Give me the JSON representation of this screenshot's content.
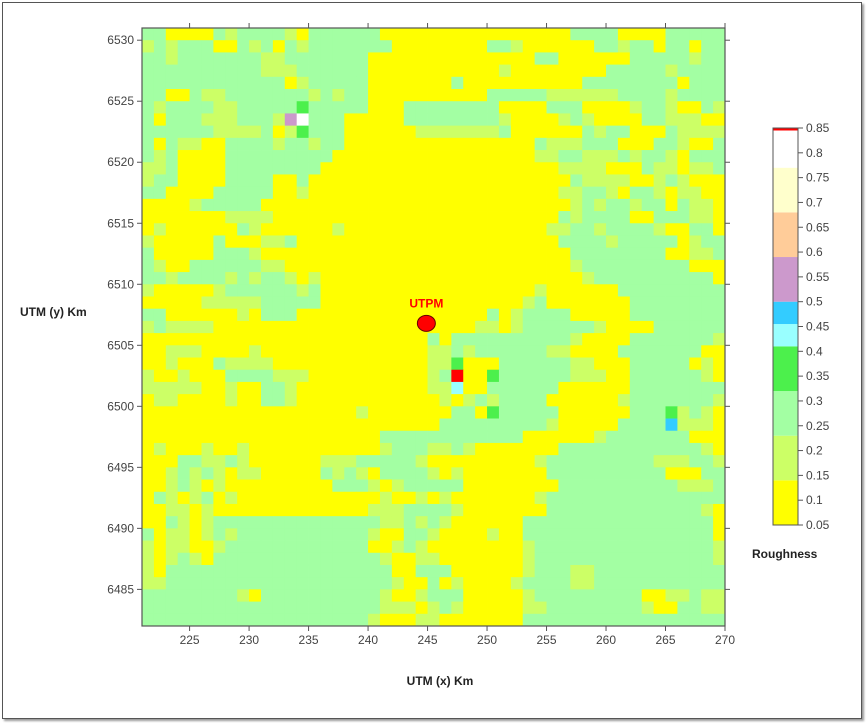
{
  "chart_data": {
    "type": "heatmap",
    "xlabel": "UTM (x) Km",
    "ylabel": "UTM (y) Km",
    "xlim": [
      221,
      270
    ],
    "ylim": [
      6482,
      6531
    ],
    "x_ticks": [
      225,
      230,
      235,
      240,
      245,
      250,
      255,
      260,
      265,
      270
    ],
    "y_ticks": [
      6485,
      6490,
      6495,
      6500,
      6505,
      6510,
      6515,
      6520,
      6525,
      6530
    ],
    "cell_size_km": 1,
    "grid_origin_top_left": [
      221,
      6531
    ],
    "legend": {
      "title": "Roughness",
      "position": "right",
      "tick_labels": [
        "0.05",
        "0.1",
        "0.15",
        "0.2",
        "0.25",
        "0.3",
        "0.35",
        "0.4",
        "0.45",
        "0.5",
        "0.55",
        "0.6",
        "0.65",
        "0.7",
        "0.75",
        "0.8",
        "0.85"
      ],
      "range": [
        0.05,
        0.85
      ]
    },
    "classes": {
      "Y": {
        "value": 0.1,
        "from": 0.05,
        "to": 0.14,
        "color": "#ffff00"
      },
      "L": {
        "value": 0.2,
        "from": 0.14,
        "to": 0.23,
        "color": "#ccff66"
      },
      "G": {
        "value": 0.28,
        "from": 0.23,
        "to": 0.32,
        "color": "#a3ffa3"
      },
      "D": {
        "value": 0.37,
        "from": 0.32,
        "to": 0.41,
        "color": "#4cf04c"
      },
      "C": {
        "value": 0.43,
        "from": 0.41,
        "to": 0.455,
        "color": "#99ffff"
      },
      "B": {
        "value": 0.48,
        "from": 0.455,
        "to": 0.5,
        "color": "#33ccff"
      },
      "P": {
        "value": 0.55,
        "from": 0.5,
        "to": 0.59,
        "color": "#cc99cc"
      },
      "O": {
        "value": 0.63,
        "from": 0.59,
        "to": 0.68,
        "color": "#ffcc99"
      },
      "K": {
        "value": 0.72,
        "from": 0.68,
        "to": 0.77,
        "color": "#ffffcc"
      },
      "W": {
        "value": 0.81,
        "from": 0.77,
        "to": 0.845,
        "color": "#ffffff"
      },
      "R": {
        "value": 0.85,
        "from": 0.845,
        "to": 0.85,
        "color": "#ff0000"
      }
    },
    "grid_rows": [
      "GGYYYYGLGGGGLYGGGGGGYYYYYYYYYYYYYYYYGGGGYYYYGGGGG",
      "LGLGGGYYGLGYGLGGGGGGGYYYYYYYYGGLYYYYYYGGLGGYGGYGG",
      "GGLGGGGGGGLLGGGGGGGYYYYYYYYYYYYYYGGYYYYYYGGGGGLGG",
      "GGGGGGGGGGLLLGGGGGGYYYYYYYYYYYLYYYYYYYYGGGGGLGGGG",
      "GGGGGGGGGGGGYLGGGGGYYYYYYYGYYYYYYYYYYGGGGGGGGYGGG",
      "GGYYGLLGGGGGGGLGLGGYYYYYYYYYYGGGGGLLLLLLGGGGLGGGG",
      "GLGGGGLLGGGGGDGGGGGYYYGGGGGGGGYYYYGGGYYYYLGGLYYGL",
      "GYGGGLLLGGGLPWGGGYYYYYGGGGGGGGLYYYYLGLYYYYGGLLLYY",
      "GGGGGGLLLLGYLDGGGYYYYYYLLLLLLLGYYYYYYGLGGYYYGLLLL",
      "GYGLLYYGGGGLGGLGGYYYYYYYYYYYYYYYYGLLLGGGYYYGGLYYG",
      "GLGYYYYGGGGGGGGGYYYYYYYYYYYYYYYYYLLGGLLLGLGGLYGGG",
      "LLGYYYYGGGGGGGGYYYYYYYYYYYYYYYYYYYYLLLLYYYGLLYLLG",
      "LGGYYYYGGGGYYGYYYYYYYYYYYYYYYYYYYYYYGLLLLYYLGLYYY",
      "GGYYYYGGGGGYYLYYYYYYYYYYYYYYYYYYYYYLLGGLYGGLYLLYY",
      "YYYYLGGGGGYYYYYYYYYYYYYYYYYYYYYYYYYYLGLGGLGGYGLLY",
      "YYYYYYYLLLLYYYYYYYYYYYYYYYYYYYYYYYYGLGGGGYYGGGLLY",
      "YLYYYYYYGLYYYYYYLYYYYYYYYYYYYYYYYYLLGGLGGGGLYYGGY",
      "LYYYYYGYYYLLGYYYYYYYYYYYYYYYYYYYYYYGGGGLGGGGGYLGG",
      "GYYYYYGGGLYYYYYYYYYYYYYYYYYYYYYYYYYYGGGGGGGGYYLLG",
      "GLYYGGGGGGLLYYYYYYYYYYYYYYYYYYYYYYYYLGGGGGGGGGYYY",
      "GGLGGGGLGLGGLYLYYYYYYYYYYYYYYYYYYYYYYLGGGGGGGGGGY",
      "LYYYYYLGGGGGGLGYYYYYYYYYYYYYYYYYYLYYYYYYGGGGGGGGG",
      "YYYYYLLLLLGGGGGYYYYYYYYYYYYYYYYYLGYYYYYYYGGGGGGGG",
      "GGYYYYYYLYGGGYYYYYYYYYYYYYYYYGYLGGGGYYYYYGGGGGGGG",
      "LGLLLLYYYYYYYYYYYYYYYYYYYYYYLLYLGGGGGGLYYYYGGGGGG",
      "YYYYYYYYYYYYYYYYYYYYYYYYGYGGGGGGGGGGLYYYYGGGGGGGL",
      "YYLLLYYYYLYYYYYYYYYYYYYYLLGLGGGGGGLLYYYYGGGGGGGYY",
      "YYLYYYGLLLLYYYYYYYYYYYYYLLDYYYGGGGGGLLYYYGGGGGYLY",
      "LYYLYYYGGGGLLLYYYYYYYYYYLGRYYDGGGGGGLLLYYGGGGGGLY",
      "LLLLLYYLYYGGLYYYYYYYYYYYLLCYYGGGGGGYYYYYYGGGGGGGG",
      "YLLYYYYLYYGGLYYYYYYYYYYYYLYLGLGGGGYYYYYYLGGGGGGGL",
      "YYYYYYYYYYYYYYYYYYLYYYYYYYGGYDGGGGGYYYYYYGGGDLGLY",
      "YYYYYYYYYYYYYYYYYYYYYYYYYGGGGGGGGGLYYYYYGGGGBLLLY",
      "YYYYYYYYYYYYYYYYYYYYGGGGGGGGGGGGYYYYYYLGGGGGGGYYY",
      "YLYYYLYYLYYYYYYYYYYYLGGGLLGLYYYYYYYGGGGGGGGGGGGLY",
      "YYYGGLLGLYYYYYYLLLGGGGGLYYYYYYYYYLGGGGGGGGGLLLGGL",
      "YYLGLGLYLLYYYYYGLGLYGGGGLYLYYYYYYYGGGGGGGGGGYYYGG",
      "YYLGLYLYYYYYYYYYGGGLYLGGGGGYYYYYYYYGGGGGGGGGGLLLG",
      "YGLYLGYLYYYYYYYYYYYYLYYLYLYYYYYYYLGGGGGGGGGGGGGGG",
      "YYLLYLYYYYYYYYYYYYYLLLGGGGLYYYYYYYGGGGGGGGGGGGGLY",
      "YYGLYLGGGGGGGGGGGGGGLLGLGLYYYYYYGGGGGGGGGGGGGGGGY",
      "GYLLYLGLGGGGGGGGGGGLYYGGLYYYYLYYGGGGGGGGGGGGGGGGY",
      "LYLLYYLGGGGGGGGGGGGYYLGLYYYYYYYYLGGGGGGGGGGGGGGGL",
      "LYLGLYGGGGGGGGGGGGGGLYYLLYYYYYYYLGGGGGGGGGGGGGGGL",
      "LYGGGGGGGGGGGGGGGGGGGYYGGGYYYYYYLGGGLLGGGGGGGGGGG",
      "LLGGGGGGGGGGGGGGGGGGGLYYGYLYYYYLGGGGLLGGGGGGGGGGG",
      "GGGGGGGGLYGGGGGGGGGGLYYLGGGYYYYYLGGGGGGGGGYYLLGLL",
      "GGGGGGGGGGGGGGGGGGGGLLLYLGLYYYYYLLGGGGGGGGLYYGGLL",
      "GGGGGGGGGGGGGGGGGGGLYYYLLYYYYYYYGGGGGGGGGGGGGGGGG"
    ],
    "annotations": [
      {
        "text": "UTPM",
        "x": 244.9,
        "y": 6506.8,
        "marker": "red-circle",
        "color": "#ff0000"
      }
    ]
  }
}
